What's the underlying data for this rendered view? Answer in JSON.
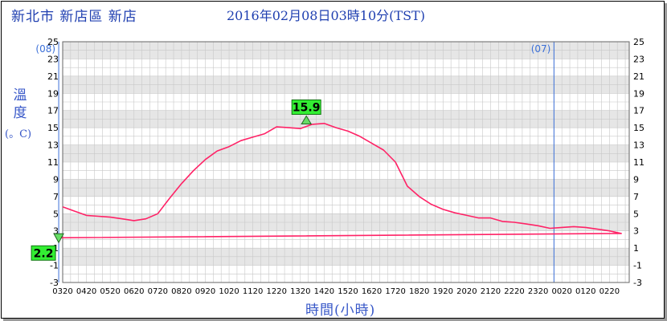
{
  "header": {
    "location": "新北市 新店區 新店",
    "timestamp": "2016年02月08日03時10分(TST)"
  },
  "chart_data": {
    "type": "line",
    "ylabel": "溫度",
    "yunit": "(。C)",
    "xlabel": "時間(小時)",
    "ylim": [
      -3,
      25
    ],
    "y_ticks": [
      25,
      23,
      21,
      19,
      17,
      15,
      13,
      11,
      9,
      7,
      5,
      3,
      1,
      -1,
      -3
    ],
    "x_ticks": [
      "0320",
      "0420",
      "0520",
      "0620",
      "0720",
      "0820",
      "0920",
      "1020",
      "1120",
      "1220",
      "1320",
      "1420",
      "1520",
      "1620",
      "1720",
      "1820",
      "1920",
      "2020",
      "2120",
      "2220",
      "2320",
      "0020",
      "0120",
      "0220"
    ],
    "day_markers": [
      {
        "label": "(07)",
        "time": "2320"
      },
      {
        "label": "(08)",
        "time": "0320"
      }
    ],
    "highlight_region": {
      "from": "0000",
      "to": "0310",
      "color": "#ccff88"
    },
    "line_color": "#ff2266",
    "max_annotation": {
      "time": "1335",
      "value": 15.9,
      "label": "15.9"
    },
    "min_annotation": {
      "time": "0310",
      "value": 2.2,
      "label": "2.2"
    },
    "series": [
      {
        "x": [
          "0320",
          "0350",
          "0420",
          "0450",
          "0520",
          "0550",
          "0620",
          "0650",
          "0720",
          "0750",
          "0820",
          "0850",
          "0920",
          "0950",
          "1020",
          "1050",
          "1120",
          "1150",
          "1220",
          "1250",
          "1320",
          "1350",
          "1420",
          "1450",
          "1520",
          "1550",
          "1620",
          "1650",
          "1720",
          "1750",
          "1820",
          "1850",
          "1920",
          "1950",
          "2020",
          "2050",
          "2120",
          "2150",
          "2220",
          "2250",
          "2320",
          "2350",
          "0020",
          "0050",
          "0120",
          "0150",
          "0220",
          "0250",
          "0310"
        ],
        "values": [
          5.8,
          5.3,
          4.8,
          4.7,
          4.6,
          4.4,
          4.2,
          4.4,
          5.0,
          6.8,
          8.5,
          10.0,
          11.3,
          12.3,
          12.8,
          13.5,
          13.9,
          14.3,
          15.1,
          15.0,
          14.9,
          15.4,
          15.5,
          15.0,
          14.6,
          14.0,
          13.2,
          12.4,
          11.0,
          8.2,
          7.0,
          6.1,
          5.5,
          5.1,
          4.8,
          4.5,
          4.5,
          4.1,
          4.0,
          3.8,
          3.6,
          3.3,
          3.4,
          3.5,
          3.4,
          3.2,
          3.0,
          2.7,
          2.2
        ]
      }
    ]
  }
}
